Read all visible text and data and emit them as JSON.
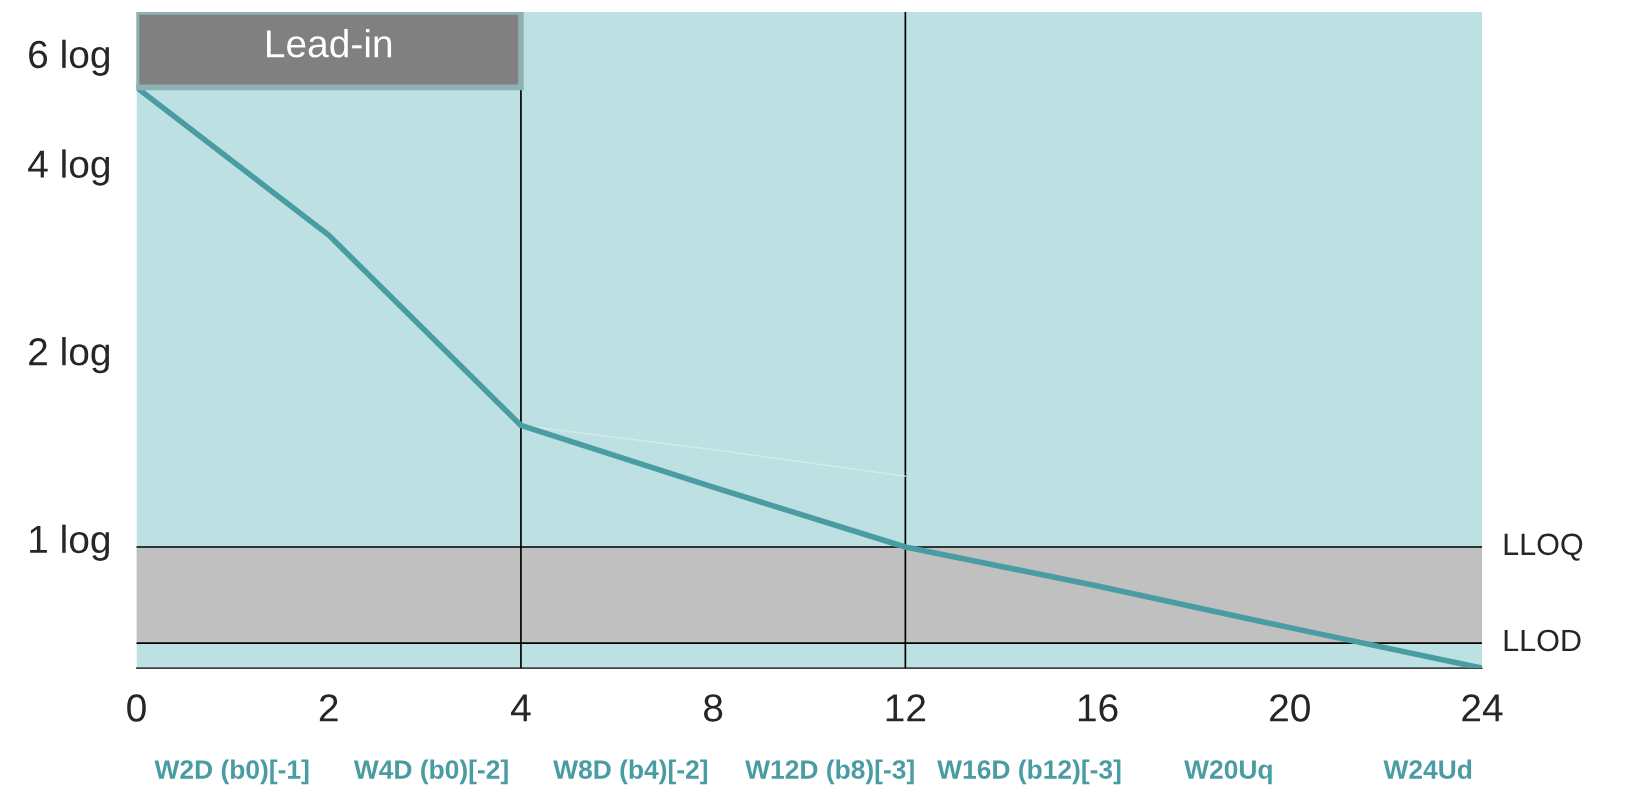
{
  "chart_data": {
    "type": "line",
    "categories": [
      "0",
      "2",
      "4",
      "8",
      "12",
      "16",
      "20",
      "24"
    ],
    "series": [
      {
        "color": "#d6ecec",
        "values": [
          null,
          null,
          1.52,
          1.39,
          1.26,
          null,
          null,
          null
        ]
      },
      {
        "color": "#4a9ca3",
        "values": [
          5.3,
          3.07,
          1.52,
          1.21,
          0.97,
          0.84,
          0.72,
          0.62
        ]
      }
    ],
    "log": "y",
    "ylim": [
      0.62,
      7
    ],
    "yticks": [
      {
        "value": 1,
        "label": "1 log"
      },
      {
        "value": 2,
        "label": "2 log"
      },
      {
        "value": 4,
        "label": "4 log"
      },
      {
        "value": 6,
        "label": "6 log"
      }
    ],
    "bands": [
      {
        "axis": "y",
        "from": 0.62,
        "to": 7,
        "color": "#bde0e2"
      },
      {
        "axis": "y",
        "from": 0.68,
        "to": 0.97,
        "color": "#c0c0c0"
      }
    ],
    "ref_lines": [
      {
        "axis": "x",
        "value": "4"
      },
      {
        "axis": "x",
        "value": "12"
      },
      {
        "axis": "y",
        "value": 0.97,
        "label": "LLOQ"
      },
      {
        "axis": "y",
        "value": 0.68,
        "label": "LLOD"
      }
    ],
    "annotations": [
      "Lead-in",
      "W2D (b0)[-1]",
      "W4D (b0)[-2]",
      "W8D (b4)[-2]",
      "W12D (b8)[-3]",
      "W16D (b12)[-3]",
      "W20Uq",
      "W24Ud"
    ],
    "grid": false,
    "legend": false,
    "marker": "none",
    "line_style": "solid"
  }
}
